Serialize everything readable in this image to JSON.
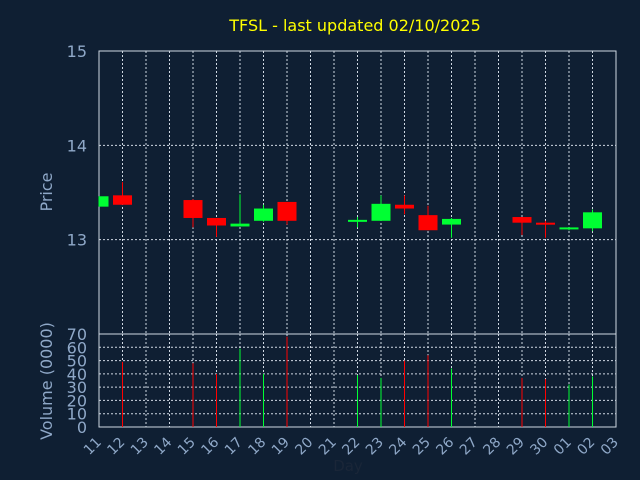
{
  "chart_data": {
    "type": "candlestick",
    "title": "TFSL - last updated 02/10/2025",
    "xlabel": "Day",
    "price_panel": {
      "ylabel": "Price",
      "ylim": [
        12.0,
        15.0
      ],
      "yticks": [
        13,
        14,
        15
      ],
      "grid": true
    },
    "volume_panel": {
      "ylabel": "Volume (0000)",
      "ylim": [
        0,
        70
      ],
      "yticks": [
        0,
        10,
        20,
        30,
        40,
        50,
        60,
        70
      ],
      "grid": true
    },
    "x_ticks": [
      "11",
      "12",
      "13",
      "14",
      "15",
      "16",
      "17",
      "18",
      "19",
      "20",
      "21",
      "22",
      "23",
      "24",
      "25",
      "26",
      "27",
      "28",
      "29",
      "30",
      "01",
      "02",
      "03"
    ],
    "colors": {
      "up": "#00ff33",
      "down": "#ff0000",
      "background": "#0f1f33",
      "axis_text": "#8fa8c8",
      "title": "#ffff00",
      "grid": "#cfd8e3"
    },
    "candles": [
      {
        "day": "11",
        "open": 13.35,
        "close": 13.46,
        "high": 13.46,
        "low": 13.35,
        "volume": 0
      },
      {
        "day": "12",
        "open": 13.47,
        "close": 13.37,
        "high": 13.61,
        "low": 13.37,
        "volume": 49
      },
      {
        "day": "15",
        "open": 13.42,
        "close": 13.23,
        "high": 13.43,
        "low": 13.13,
        "volume": 48
      },
      {
        "day": "16",
        "open": 13.23,
        "close": 13.15,
        "high": 13.23,
        "low": 13.03,
        "volume": 40
      },
      {
        "day": "17",
        "open": 13.14,
        "close": 13.17,
        "high": 13.48,
        "low": 13.14,
        "volume": 59
      },
      {
        "day": "18",
        "open": 13.2,
        "close": 13.33,
        "high": 13.37,
        "low": 13.19,
        "volume": 40
      },
      {
        "day": "19",
        "open": 13.4,
        "close": 13.2,
        "high": 13.4,
        "low": 13.16,
        "volume": 68
      },
      {
        "day": "22",
        "open": 13.2,
        "close": 13.21,
        "high": 13.24,
        "low": 13.13,
        "volume": 39
      },
      {
        "day": "23",
        "open": 13.2,
        "close": 13.38,
        "high": 13.47,
        "low": 13.2,
        "volume": 37
      },
      {
        "day": "24",
        "open": 13.37,
        "close": 13.33,
        "high": 13.47,
        "low": 13.27,
        "volume": 50
      },
      {
        "day": "25",
        "open": 13.26,
        "close": 13.1,
        "high": 13.36,
        "low": 13.1,
        "volume": 54
      },
      {
        "day": "26",
        "open": 13.16,
        "close": 13.22,
        "high": 13.23,
        "low": 13.02,
        "volume": 44
      },
      {
        "day": "29",
        "open": 13.24,
        "close": 13.18,
        "high": 13.24,
        "low": 13.05,
        "volume": 37
      },
      {
        "day": "30",
        "open": 13.18,
        "close": 13.17,
        "high": 13.2,
        "low": 13.02,
        "volume": 36
      },
      {
        "day": "01",
        "open": 13.11,
        "close": 13.13,
        "high": 13.13,
        "low": 13.1,
        "volume": 32
      },
      {
        "day": "02",
        "open": 13.12,
        "close": 13.29,
        "high": 13.32,
        "low": 13.09,
        "volume": 38
      }
    ]
  }
}
